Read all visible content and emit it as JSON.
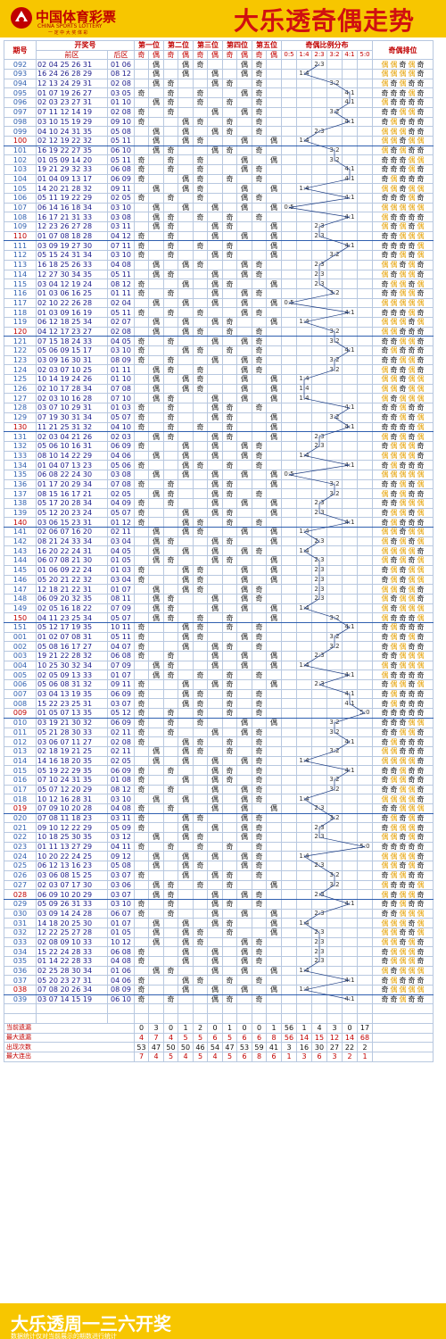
{
  "header": {
    "logo_cn": "中国体育彩票",
    "logo_en": "CHINA SPORTS LOTTERY",
    "logo_tag": "一 定 中 大 奖 体 彩",
    "title": "大乐透奇偶走势"
  },
  "columns": {
    "period": "期号",
    "numbers": "开奖号",
    "front": "前区",
    "back": "后区",
    "pos": [
      "第一位",
      "第二位",
      "第三位",
      "第四位",
      "第五位"
    ],
    "ratio": "奇偶比例分布",
    "pattern": "奇偶排位",
    "odd": "奇",
    "even": "偶",
    "ratios": [
      "0:5",
      "1:4",
      "2:3",
      "3:2",
      "4:1",
      "5:0"
    ]
  },
  "rows": [
    [
      "092",
      "02 04 25 26 31",
      "01 06"
    ],
    [
      "093",
      "16 24 26 28 29",
      "08 12"
    ],
    [
      "094",
      "12 13 24 29 31",
      "02 08"
    ],
    [
      "095",
      "01 07 19 26 27",
      "03 05"
    ],
    [
      "096",
      "02 03 23 27 31",
      "01 10"
    ],
    [
      "097",
      "07 11 12 14 19",
      "02 08"
    ],
    [
      "098",
      "03 10 15 19 29",
      "09 10"
    ],
    [
      "099",
      "04 10 24 31 35",
      "05 08"
    ],
    [
      "100",
      "02 12 19 22 32",
      "05 11"
    ],
    [
      "101",
      "16 19 22 27 35",
      "06 10"
    ],
    [
      "102",
      "01 05 09 14 20",
      "05 11"
    ],
    [
      "103",
      "19 21 29 32 33",
      "06 08"
    ],
    [
      "104",
      "01 04 09 13 17",
      "06 09"
    ],
    [
      "105",
      "14 20 21 28 32",
      "09 11"
    ],
    [
      "106",
      "05 11 19 22 29",
      "02 05"
    ],
    [
      "107",
      "06 14 16 18 34",
      "03 10"
    ],
    [
      "108",
      "16 17 21 31 33",
      "03 08"
    ],
    [
      "109",
      "12 23 26 27 28",
      "03 11"
    ],
    [
      "110",
      "01 07 08 18 28",
      "04 12"
    ],
    [
      "111",
      "03 09 19 27 30",
      "07 11"
    ],
    [
      "112",
      "05 15 24 31 34",
      "03 10"
    ],
    [
      "113",
      "16 18 25 26 33",
      "04 08"
    ],
    [
      "114",
      "12 27 30 34 35",
      "05 11"
    ],
    [
      "115",
      "03 04 12 19 24",
      "08 12"
    ],
    [
      "116",
      "01 03 06 16 25",
      "01 11"
    ],
    [
      "117",
      "02 10 22 26 28",
      "02 04"
    ],
    [
      "118",
      "01 03 09 16 19",
      "05 11"
    ],
    [
      "119",
      "06 12 18 25 34",
      "02 07"
    ],
    [
      "120",
      "04 12 17 23 27",
      "02 08"
    ],
    [
      "121",
      "07 15 18 24 33",
      "04 05"
    ],
    [
      "122",
      "05 06 09 15 17",
      "03 10"
    ],
    [
      "123",
      "03 09 16 30 31",
      "08 09"
    ],
    [
      "124",
      "02 03 07 10 25",
      "01 11"
    ],
    [
      "125",
      "10 14 19 24 26",
      "01 10"
    ],
    [
      "126",
      "02 10 17 28 34",
      "07 08"
    ],
    [
      "127",
      "02 03 10 16 28",
      "07 10"
    ],
    [
      "128",
      "03 07 10 29 31",
      "01 03"
    ],
    [
      "129",
      "07 19 30 31 34",
      "05 07"
    ],
    [
      "130",
      "11 21 25 31 32",
      "04 10"
    ],
    [
      "131",
      "02 03 04 21 26",
      "02 03"
    ],
    [
      "132",
      "05 06 10 16 31",
      "06 09"
    ],
    [
      "133",
      "08 10 14 22 29",
      "04 06"
    ],
    [
      "134",
      "01 04 07 13 23",
      "05 06"
    ],
    [
      "135",
      "06 08 22 24 30",
      "03 08"
    ],
    [
      "136",
      "01 17 20 29 34",
      "07 08"
    ],
    [
      "137",
      "08 15 16 17 21",
      "02 05"
    ],
    [
      "138",
      "05 17 20 28 34",
      "04 09"
    ],
    [
      "139",
      "05 12 20 23 24",
      "05 07"
    ],
    [
      "140",
      "03 06 15 23 31",
      "01 12"
    ],
    [
      "141",
      "02 06 07 16 20",
      "02 11"
    ],
    [
      "142",
      "08 21 24 33 34",
      "03 04"
    ],
    [
      "143",
      "16 20 22 24 31",
      "04 05"
    ],
    [
      "144",
      "06 07 08 21 30",
      "01 05"
    ],
    [
      "145",
      "01 06 09 22 24",
      "01 03"
    ],
    [
      "146",
      "05 20 21 22 32",
      "03 04"
    ],
    [
      "147",
      "12 18 21 22 31",
      "01 07"
    ],
    [
      "148",
      "06 09 20 32 35",
      "08 11"
    ],
    [
      "149",
      "02 05 16 18 22",
      "07 09"
    ],
    [
      "150",
      "04 11 23 25 34",
      "05 07"
    ],
    [
      "151",
      "05 12 17 19 35",
      "10 11"
    ],
    [
      "001",
      "01 02 07 08 31",
      "05 11"
    ],
    [
      "002",
      "05 08 16 17 27",
      "04 07"
    ],
    [
      "003",
      "19 21 22 28 32",
      "06 08"
    ],
    [
      "004",
      "10 25 30 32 34",
      "07 09"
    ],
    [
      "005",
      "02 05 09 13 33",
      "01 07"
    ],
    [
      "006",
      "05 06 08 31 32",
      "09 11"
    ],
    [
      "007",
      "03 04 13 19 35",
      "06 09"
    ],
    [
      "008",
      "15 22 23 25 31",
      "03 07"
    ],
    [
      "009",
      "01 05 07 13 35",
      "05 12"
    ],
    [
      "010",
      "03 19 21 30 32",
      "06 09"
    ],
    [
      "011",
      "05 21 28 30 33",
      "02 11"
    ],
    [
      "012",
      "03 06 07 11 27",
      "02 08"
    ],
    [
      "013",
      "02 18 19 21 25",
      "02 11"
    ],
    [
      "014",
      "14 16 18 20 35",
      "02 05"
    ],
    [
      "015",
      "05 19 22 29 35",
      "06 09"
    ],
    [
      "016",
      "07 10 24 31 35",
      "01 08"
    ],
    [
      "017",
      "05 07 12 20 29",
      "08 12"
    ],
    [
      "018",
      "10 12 16 28 31",
      "03 10"
    ],
    [
      "019",
      "07 09 10 20 28",
      "04 08"
    ],
    [
      "020",
      "07 08 11 18 23",
      "03 11"
    ],
    [
      "021",
      "09 10 12 22 29",
      "05 09"
    ],
    [
      "022",
      "10 18 25 30 35",
      "03 12"
    ],
    [
      "023",
      "01 11 13 27 29",
      "04 11"
    ],
    [
      "024",
      "10 20 22 24 25",
      "09 12"
    ],
    [
      "025",
      "06 12 13 16 23",
      "05 08"
    ],
    [
      "026",
      "03 06 08 15 25",
      "03 07"
    ],
    [
      "027",
      "02 03 07 17 30",
      "03 06"
    ],
    [
      "028",
      "06 09 10 20 29",
      "03 07"
    ],
    [
      "029",
      "05 09 26 31 33",
      "03 10"
    ],
    [
      "030",
      "03 09 14 24 28",
      "06 07"
    ],
    [
      "031",
      "14 18 20 25 30",
      "01 07"
    ],
    [
      "032",
      "12 22 25 27 28",
      "01 05"
    ],
    [
      "033",
      "02 08 09 10 33",
      "10 12"
    ],
    [
      "034",
      "15 22 24 28 33",
      "06 08"
    ],
    [
      "035",
      "01 14 22 28 33",
      "04 08"
    ],
    [
      "036",
      "02 25 28 30 34",
      "01 06"
    ],
    [
      "037",
      "05 20 23 27 31",
      "04 06"
    ],
    [
      "038",
      "07 08 20 26 34",
      "08 09"
    ],
    [
      "039",
      "03 07 14 15 19",
      "06 10"
    ]
  ],
  "stats": {
    "labels": [
      "当前遗漏",
      "最大遗漏",
      "出现次数",
      "最大连出"
    ],
    "values": [
      [
        "0",
        "3",
        "0",
        "1",
        "2",
        "0",
        "1",
        "0",
        "0",
        "1",
        "56",
        "1",
        "4",
        "3",
        "0",
        "17"
      ],
      [
        "4",
        "7",
        "4",
        "5",
        "5",
        "6",
        "5",
        "6",
        "6",
        "8",
        "56",
        "14",
        "15",
        "12",
        "14",
        "68"
      ],
      [
        "53",
        "47",
        "50",
        "50",
        "46",
        "54",
        "47",
        "53",
        "59",
        "41",
        "3",
        "16",
        "30",
        "27",
        "22",
        "2"
      ],
      [
        "7",
        "4",
        "5",
        "4",
        "5",
        "4",
        "5",
        "6",
        "8",
        "6",
        "1",
        "3",
        "6",
        "3",
        "2",
        "1"
      ]
    ]
  },
  "footer": {
    "big": "大乐透周一三六开奖",
    "small": "数据统计仅对当前展示的期数进行统计"
  },
  "colors": {
    "yellow": "#f7c600",
    "red": "#c00000",
    "blue": "#3060b0",
    "odd": "#111111",
    "even": "#e5a000"
  }
}
